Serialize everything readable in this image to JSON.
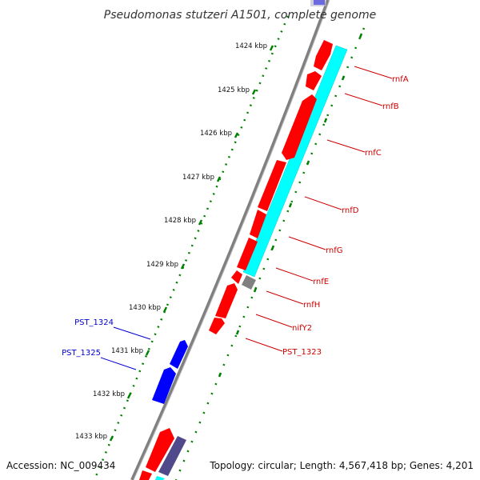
{
  "title": "Pseudomonas stutzeri A1501, complete genome",
  "footer": {
    "accession": "Accession: NC_009434",
    "topology": "Topology: circular; Length: 4,567,418 bp; Genes: 4,201"
  },
  "colors": {
    "forward_gene": "#ff0000",
    "reverse_gene": "#0000ff",
    "gc_track": "#00ffff",
    "gc_track_dark": "#7b68a6",
    "other_feature": "#808080",
    "scale_dots": "#008000",
    "backbone": "#808080",
    "forward_label": "#cc0000",
    "reverse_label": "#0000cc"
  },
  "scale": {
    "unit": "kbp",
    "ticks": [
      "1424 kbp",
      "1425 kbp",
      "1426 kbp",
      "1427 kbp",
      "1428 kbp",
      "1429 kbp",
      "1430 kbp",
      "1431 kbp",
      "1432 kbp",
      "1433 kbp"
    ]
  },
  "genes_forward": [
    {
      "name": "rnfA"
    },
    {
      "name": "rnfB"
    },
    {
      "name": "rnfC"
    },
    {
      "name": "rnfD"
    },
    {
      "name": "rnfG"
    },
    {
      "name": "rnfE"
    },
    {
      "name": "rnfH"
    },
    {
      "name": "nifY2"
    },
    {
      "name": "PST_1323"
    }
  ],
  "genes_reverse": [
    {
      "name": "PST_1324"
    },
    {
      "name": "PST_1325"
    }
  ]
}
